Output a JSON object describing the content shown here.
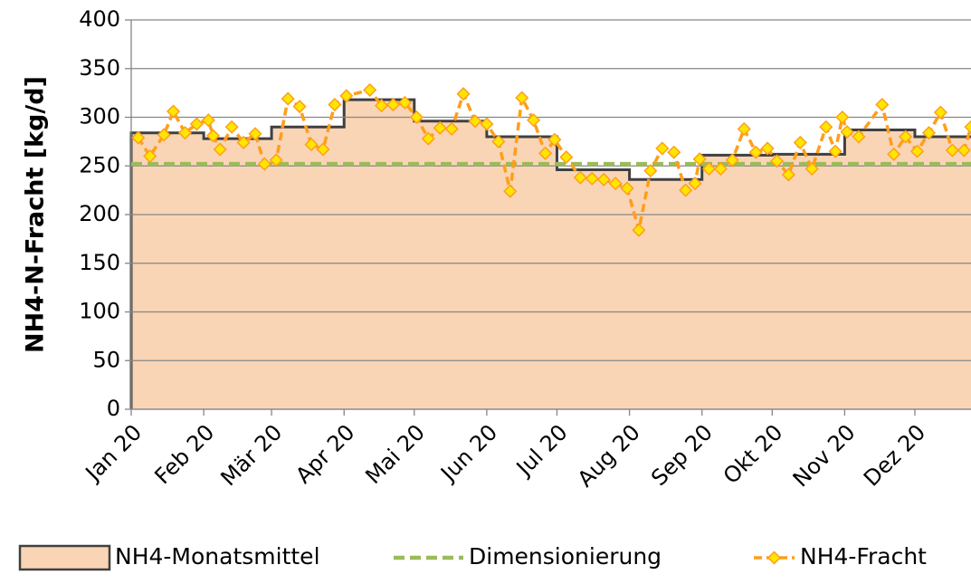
{
  "chart_data": {
    "type": "line",
    "y_label": "NH4-N-Fracht [kg/d]",
    "xlim": [
      0,
      359
    ],
    "xticks": [
      {
        "value": 0,
        "label": "Jan 20"
      },
      {
        "value": 31,
        "label": "Feb 20"
      },
      {
        "value": 60,
        "label": "Mär 20"
      },
      {
        "value": 91,
        "label": "Apr 20"
      },
      {
        "value": 121,
        "label": "Mai 20"
      },
      {
        "value": 152,
        "label": "Jun 20"
      },
      {
        "value": 182,
        "label": "Jul 20"
      },
      {
        "value": 213,
        "label": "Aug 20"
      },
      {
        "value": 244,
        "label": "Sep 20"
      },
      {
        "value": 274,
        "label": "Okt 20"
      },
      {
        "value": 305,
        "label": "Nov 20"
      },
      {
        "value": 335,
        "label": "Dez 20"
      }
    ],
    "ylim": [
      0,
      400
    ],
    "yticks": [
      0,
      50,
      100,
      150,
      200,
      250,
      300,
      350,
      400
    ],
    "grid": true,
    "legend": "bottom",
    "series": [
      {
        "name": "NH4-Monatsmittel",
        "color": "#404040",
        "fill_color": "#f9d5b6",
        "step": true,
        "x": [
          0,
          31,
          60,
          91,
          121,
          152,
          182,
          213,
          244,
          274,
          305,
          335
        ],
        "values": [
          284,
          278,
          290,
          318,
          296,
          280,
          246,
          236,
          261,
          262,
          287,
          280
        ]
      },
      {
        "name": "Dimensionierung",
        "color": "#9bbb59",
        "x": [
          0,
          359
        ],
        "values": [
          252,
          252
        ]
      },
      {
        "name": "NH4-Fracht",
        "color": "#ff9e1b",
        "marker_color": "#ffe600",
        "x": [
          3,
          8,
          14,
          18,
          23,
          28,
          33,
          35,
          38,
          43,
          48,
          53,
          57,
          62,
          67,
          72,
          77,
          82,
          87,
          92,
          102,
          107,
          112,
          117,
          122,
          127,
          132,
          137,
          142,
          147,
          152,
          157,
          162,
          167,
          172,
          177,
          181,
          186,
          192,
          197,
          202,
          207,
          212,
          217,
          222,
          227,
          232,
          237,
          241,
          243,
          247,
          252,
          257,
          262,
          267,
          272,
          276,
          281,
          286,
          291,
          297,
          301,
          304,
          306,
          311,
          321,
          326,
          331,
          336,
          341,
          346,
          351,
          356,
          359
        ],
        "values": [
          279,
          260,
          282,
          306,
          284,
          293,
          297,
          281,
          267,
          290,
          274,
          283,
          252,
          256,
          319,
          311,
          272,
          267,
          313,
          322,
          328,
          312,
          313,
          315,
          300,
          278,
          289,
          288,
          324,
          296,
          293,
          275,
          224,
          320,
          297,
          263,
          277,
          259,
          238,
          237,
          236,
          232,
          227,
          184,
          245,
          268,
          264,
          225,
          232,
          257,
          247,
          247,
          256,
          288,
          264,
          268,
          255,
          241,
          274,
          247,
          290,
          265,
          300,
          285,
          280,
          313,
          262,
          280,
          265,
          284,
          305,
          266,
          266,
          290
        ]
      }
    ]
  }
}
